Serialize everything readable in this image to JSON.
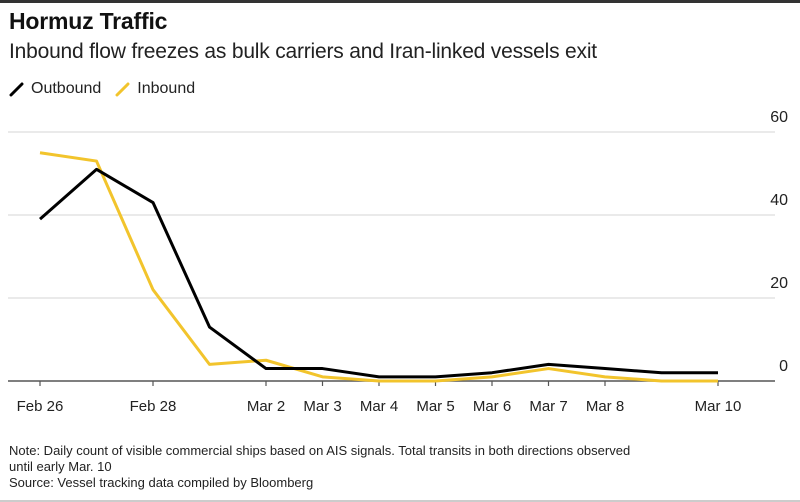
{
  "header": {
    "title": "Hormuz Traffic",
    "subtitle": "Inbound flow freezes as bulk carriers and Iran-linked vessels exit"
  },
  "legend": {
    "items": [
      {
        "label": "Outbound",
        "color": "#000000"
      },
      {
        "label": "Inbound",
        "color": "#f2c42c"
      }
    ]
  },
  "footer": {
    "note_line1": "Note: Daily count of visible commercial ships based on AIS signals. Total transits in both directions observed",
    "note_line2": "until early Mar. 10",
    "source": "Source: Vessel tracking data compiled by Bloomberg"
  },
  "chart_data": {
    "type": "line",
    "title": "Hormuz Traffic",
    "subtitle": "Inbound flow freezes as bulk carriers and Iran-linked vessels exit",
    "xlabel": "",
    "ylabel": "",
    "x": [
      "Feb 26",
      "Feb 27",
      "Feb 28",
      "Mar 1",
      "Mar 2",
      "Mar 3",
      "Mar 4",
      "Mar 5",
      "Mar 6",
      "Mar 7",
      "Mar 8",
      "Mar 9",
      "Mar 10"
    ],
    "x_tick_labels": [
      "Feb 26",
      "Feb 28",
      "Mar 2",
      "Mar 3",
      "Mar 4",
      "Mar 5",
      "Mar 6",
      "Mar 7",
      "Mar 8",
      "Mar 10"
    ],
    "y_ticks": [
      0,
      20,
      40,
      60
    ],
    "ylim": [
      0,
      60
    ],
    "grid": true,
    "y_axis_position": "right",
    "legend_position": "top-left",
    "series": [
      {
        "name": "Outbound",
        "color": "#000000",
        "values": [
          39,
          51,
          43,
          13,
          3,
          3,
          1,
          1,
          2,
          4,
          3,
          2,
          2
        ]
      },
      {
        "name": "Inbound",
        "color": "#f2c42c",
        "values": [
          55,
          53,
          22,
          4,
          5,
          1,
          0,
          0,
          1,
          3,
          1,
          0,
          0
        ]
      }
    ]
  }
}
